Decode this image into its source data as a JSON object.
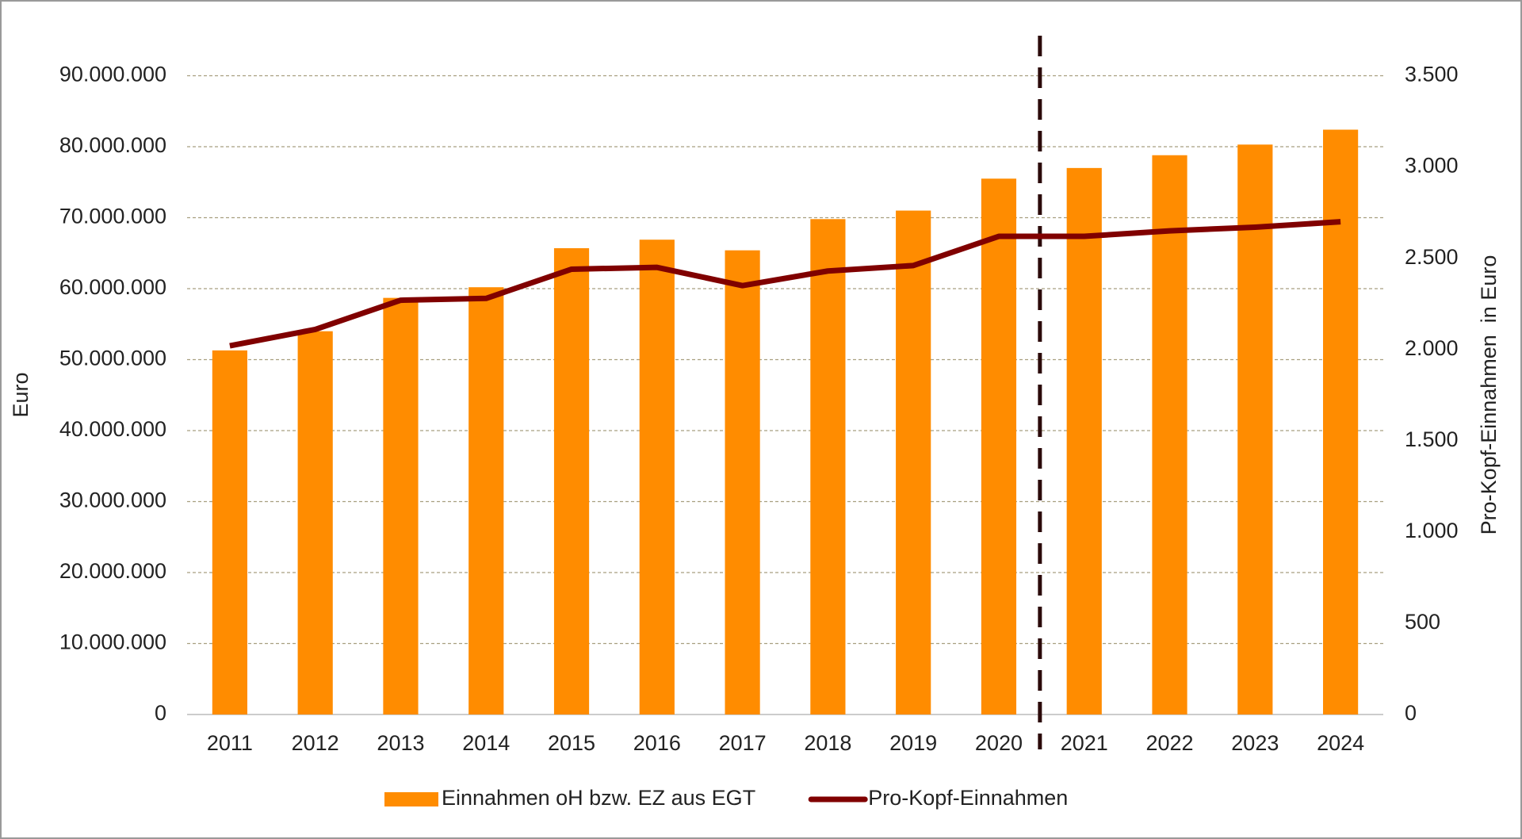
{
  "chart_data": {
    "type": "bar_line",
    "categories": [
      "2011",
      "2012",
      "2013",
      "2014",
      "2015",
      "2016",
      "2017",
      "2018",
      "2019",
      "2020",
      "2021",
      "2022",
      "2023",
      "2024"
    ],
    "series": [
      {
        "name": "Einnahmen oH bzw. EZ aus EGT",
        "color": "#ff8c00",
        "type": "bar",
        "values": [
          51300000,
          54000000,
          58700000,
          60200000,
          65700000,
          66900000,
          65400000,
          69800000,
          71000000,
          75500000,
          77000000,
          78800000,
          80300000,
          82400000
        ]
      },
      {
        "name": "Pro-Kopf-Einnahmen",
        "color": "#800000",
        "type": "line",
        "axis": "y2",
        "values": [
          2020,
          2110,
          2270,
          2280,
          2440,
          2450,
          2350,
          2430,
          2460,
          2620,
          2620,
          2650,
          2670,
          2700
        ]
      }
    ],
    "ylabel": "Euro",
    "y2label": "Pro-Kopf-Einnahmen  in Euro",
    "ylim": [
      0,
      90000000
    ],
    "yticks": [
      0,
      {
        "value": 10000000,
        "label": "10.000.000"
      },
      {
        "value": 20000000,
        "label": "20.000.000"
      },
      {
        "value": 30000000,
        "label": "30.000.000"
      },
      {
        "value": 40000000,
        "label": "40.000.000"
      },
      {
        "value": 50000000,
        "label": "50.000.000"
      },
      {
        "value": 60000000,
        "label": "60.000.000"
      },
      {
        "value": 70000000,
        "label": "70.000.000"
      },
      {
        "value": 80000000,
        "label": "80.000.000"
      },
      {
        "value": 90000000,
        "label": "90.000.000"
      }
    ],
    "y2lim": [
      0,
      3500
    ],
    "y2ticks": [
      0,
      500,
      {
        "value": 1000,
        "label": "1.000"
      },
      {
        "value": 1500,
        "label": "1.500"
      },
      {
        "value": 2000,
        "label": "2.000"
      },
      {
        "value": 2500,
        "label": "2.500"
      },
      {
        "value": 3000,
        "label": "3.000"
      },
      {
        "value": 3500,
        "label": "3.500"
      }
    ],
    "grid": true,
    "legend": "bottom"
  }
}
